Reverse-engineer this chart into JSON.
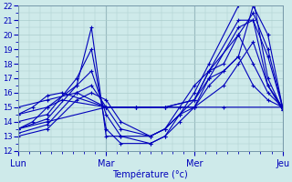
{
  "xlabel": "Température (°c)",
  "days": [
    "Lun",
    "Mar",
    "Mer",
    "Jeu"
  ],
  "day_positions": [
    0,
    24,
    48,
    72
  ],
  "ylim": [
    12,
    22
  ],
  "xlim": [
    0,
    72
  ],
  "yticks": [
    12,
    13,
    14,
    15,
    16,
    17,
    18,
    19,
    20,
    21,
    22
  ],
  "bg_color": "#ceeaea",
  "grid_color": "#aacccc",
  "line_color": "#0000bb",
  "series": [
    {
      "x": [
        0,
        8,
        24,
        32,
        48,
        56,
        72
      ],
      "y": [
        13.5,
        14.0,
        15.0,
        15.0,
        15.0,
        15.0,
        15.0
      ]
    },
    {
      "x": [
        0,
        8,
        16,
        20,
        24,
        28,
        36,
        40,
        44,
        48,
        52,
        60,
        64,
        68,
        72
      ],
      "y": [
        13.0,
        13.5,
        15.5,
        16.0,
        15.5,
        14.0,
        13.0,
        13.5,
        14.5,
        15.0,
        16.5,
        18.5,
        22.0,
        20.0,
        15.0
      ]
    },
    {
      "x": [
        0,
        8,
        16,
        20,
        24,
        28,
        36,
        40,
        44,
        48,
        52,
        60,
        64,
        68,
        72
      ],
      "y": [
        13.2,
        13.8,
        16.0,
        16.5,
        15.0,
        13.5,
        13.0,
        13.5,
        14.5,
        15.5,
        17.5,
        20.0,
        21.5,
        19.0,
        15.0
      ]
    },
    {
      "x": [
        0,
        8,
        16,
        20,
        24,
        28,
        36,
        40,
        44,
        48,
        52,
        60,
        64,
        68,
        72
      ],
      "y": [
        13.5,
        14.2,
        16.5,
        17.5,
        14.5,
        13.0,
        12.5,
        13.0,
        14.0,
        15.0,
        17.0,
        20.5,
        21.0,
        18.5,
        15.0
      ]
    },
    {
      "x": [
        0,
        8,
        16,
        20,
        24,
        28,
        36,
        40,
        44,
        48,
        52,
        60,
        64,
        68,
        72
      ],
      "y": [
        14.0,
        14.5,
        17.0,
        19.0,
        13.5,
        12.5,
        12.5,
        13.0,
        14.5,
        16.0,
        18.0,
        22.0,
        22.5,
        17.0,
        14.8
      ]
    },
    {
      "x": [
        0,
        8,
        16,
        20,
        24,
        28,
        36,
        40,
        44,
        48,
        52,
        60,
        64,
        68,
        72
      ],
      "y": [
        14.5,
        15.0,
        16.5,
        20.5,
        13.0,
        13.0,
        13.0,
        13.5,
        15.0,
        16.5,
        17.5,
        21.0,
        21.0,
        16.5,
        14.8
      ]
    },
    {
      "x": [
        0,
        8,
        16,
        24,
        32,
        40,
        48,
        56,
        60,
        64,
        68,
        72
      ],
      "y": [
        15.0,
        15.5,
        16.0,
        15.0,
        15.0,
        15.0,
        15.0,
        16.5,
        18.0,
        19.5,
        16.5,
        15.0
      ]
    },
    {
      "x": [
        0,
        4,
        8,
        12,
        24,
        32,
        40,
        48,
        52,
        56,
        60,
        64,
        68,
        72
      ],
      "y": [
        14.5,
        15.0,
        15.8,
        16.0,
        15.0,
        15.0,
        15.0,
        15.5,
        17.5,
        18.0,
        20.0,
        18.0,
        16.0,
        15.0
      ]
    },
    {
      "x": [
        0,
        4,
        8,
        12,
        24,
        32,
        40,
        48,
        52,
        56,
        60,
        64,
        68,
        72
      ],
      "y": [
        13.5,
        14.0,
        15.0,
        15.5,
        15.0,
        15.0,
        15.0,
        15.5,
        17.0,
        17.5,
        18.5,
        16.5,
        15.5,
        15.0
      ]
    }
  ]
}
